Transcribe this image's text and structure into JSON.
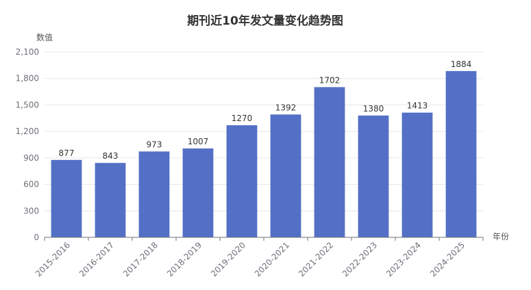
{
  "chart_data": {
    "type": "bar",
    "title": "期刊近10年发文量变化趋势图",
    "xlabel": "年份",
    "ylabel": "数值",
    "categories": [
      "2015-2016",
      "2016-2017",
      "2017-2018",
      "2018-2019",
      "2019-2020",
      "2020-2021",
      "2021-2022",
      "2022-2023",
      "2023-2024",
      "2024-2025"
    ],
    "values": [
      877,
      843,
      973,
      1007,
      1270,
      1392,
      1702,
      1380,
      1413,
      1884
    ],
    "ylim": [
      0,
      2100
    ],
    "yticks": [
      0,
      300,
      600,
      900,
      1200,
      1500,
      1800,
      2100
    ],
    "ytick_labels": [
      "0",
      "300",
      "600",
      "900",
      "1,200",
      "1,500",
      "1,800",
      "2,100"
    ],
    "grid": true,
    "bar_color": "#5470c6",
    "data_labels": true
  }
}
